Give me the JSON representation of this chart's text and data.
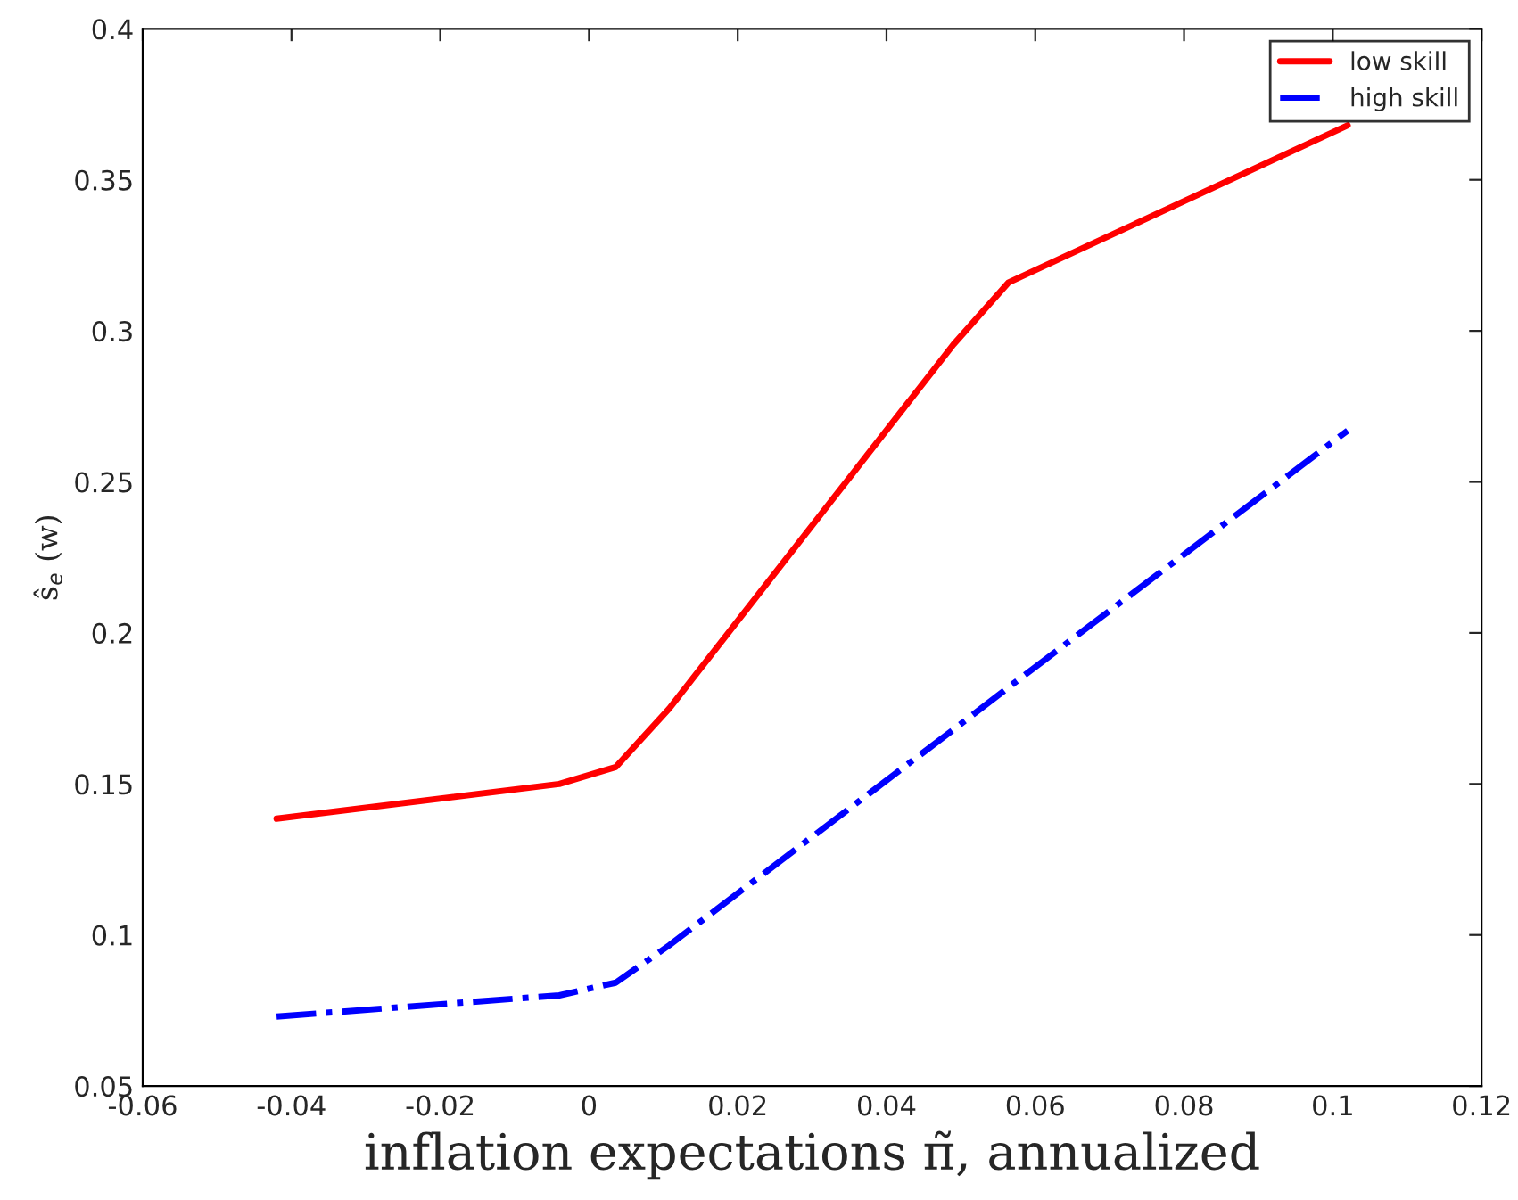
{
  "chart_data": {
    "type": "line",
    "xlabel": "inflation expectations π̃, annualized",
    "ylabel": "ŝ$_{e}$ (w)",
    "x": [
      -0.042,
      -0.004,
      0.0036,
      0.0108,
      0.049,
      0.0564,
      0.102
    ],
    "series": [
      {
        "name": "low skill",
        "color": "#ff0000",
        "line_style": "solid",
        "values": [
          0.1385,
          0.15,
          0.1556,
          0.175,
          0.2955,
          0.316,
          0.368
        ]
      },
      {
        "name": "high skill",
        "color": "#0000ff",
        "line_style": "dashdot",
        "values": [
          0.073,
          0.08,
          0.0842,
          0.0966,
          0.168,
          0.182,
          0.267
        ]
      }
    ],
    "xlim": [
      -0.06,
      0.12
    ],
    "xticks": [
      -0.06,
      -0.04,
      -0.02,
      0,
      0.02,
      0.04,
      0.06,
      0.08,
      0.1,
      0.12
    ],
    "ylim": [
      0.05,
      0.4
    ],
    "yticks": [
      0.05,
      0.1,
      0.15,
      0.2,
      0.25,
      0.3,
      0.35,
      0.4
    ],
    "grid": false,
    "legend": "top right",
    "marker": "none"
  }
}
